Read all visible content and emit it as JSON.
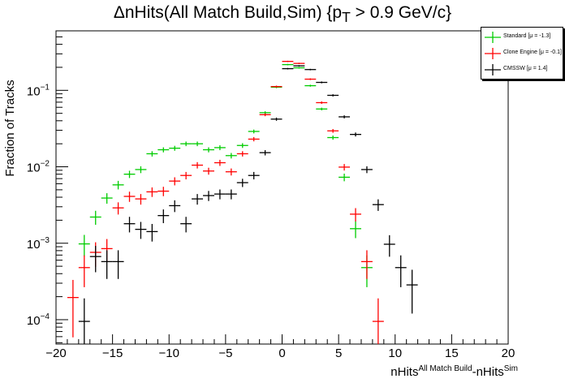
{
  "chart_data": {
    "type": "scatter",
    "title_main": "ΔnHits(All Match Build,Sim) {p",
    "title_sub": "T",
    "title_end": " > 0.9 GeV/c}",
    "xlabel_a": "nHits",
    "xlabel_sup1": "All Match Build",
    "xlabel_b": "-nHits",
    "xlabel_sup2": "Sim",
    "ylabel": "Fraction of Tracks",
    "xlim": [
      -20,
      20
    ],
    "ylim": [
      4.8e-05,
      0.6
    ],
    "yscale": "log",
    "x_ticks": [
      "−20",
      "−15",
      "−10",
      "−5",
      "0",
      "5",
      "10",
      "15",
      "20"
    ],
    "y_ticks": [
      {
        "base": "10",
        "exp": "−1"
      },
      {
        "base": "10",
        "exp": "−2"
      },
      {
        "base": "10",
        "exp": "−3"
      },
      {
        "base": "10",
        "exp": "−4"
      }
    ],
    "legend_position": "top-right-outside",
    "series": [
      {
        "name": "Standard",
        "mu": "[μ = -1.3]",
        "color": "#00cc00",
        "x": [
          -17.5,
          -16.5,
          -15.5,
          -14.5,
          -13.5,
          -12.5,
          -11.5,
          -10.5,
          -9.5,
          -8.5,
          -7.5,
          -6.5,
          -5.5,
          -4.5,
          -3.5,
          -2.5,
          -1.5,
          -0.5,
          0.5,
          1.5,
          2.5,
          3.5,
          4.5,
          5.5,
          6.5,
          7.5
        ],
        "y": [
          0.00098,
          0.0022,
          0.0039,
          0.0058,
          0.008,
          0.0092,
          0.0148,
          0.0167,
          0.0175,
          0.02,
          0.02,
          0.0167,
          0.0178,
          0.014,
          0.019,
          0.029,
          0.051,
          0.11,
          0.217,
          0.197,
          0.115,
          0.057,
          0.0241,
          0.0073,
          0.00155,
          0.00048
        ]
      },
      {
        "name": "Clone Engine",
        "mu": "[μ = -0.1]",
        "color": "#ff0000",
        "x": [
          -18.5,
          -17.5,
          -16.5,
          -15.5,
          -14.5,
          -13.5,
          -12.5,
          -11.5,
          -10.5,
          -9.5,
          -8.5,
          -7.5,
          -6.5,
          -5.5,
          -4.5,
          -3.5,
          -2.5,
          -1.5,
          -0.5,
          0.5,
          1.5,
          2.5,
          3.5,
          4.5,
          5.5,
          6.5,
          7.5,
          8.5
        ],
        "y": [
          0.000195,
          0.00048,
          0.00076,
          0.00085,
          0.0029,
          0.0041,
          0.0038,
          0.0047,
          0.0048,
          0.0065,
          0.0077,
          0.0105,
          0.0088,
          0.0113,
          0.0086,
          0.0148,
          0.023,
          0.048,
          0.112,
          0.239,
          0.225,
          0.14,
          0.069,
          0.0295,
          0.0099,
          0.0024,
          0.000575,
          9.5e-05
        ]
      },
      {
        "name": "CMSSW",
        "mu": "[μ =  1.4]",
        "color": "#000000",
        "x": [
          -17.5,
          -16.5,
          -15.5,
          -14.5,
          -13.5,
          -12.5,
          -11.5,
          -10.5,
          -9.5,
          -8.5,
          -7.5,
          -6.5,
          -5.5,
          -4.5,
          -3.5,
          -2.5,
          -1.5,
          -0.5,
          0.5,
          1.5,
          2.5,
          3.5,
          4.5,
          5.5,
          6.5,
          7.5,
          8.5,
          9.5,
          10.5,
          11.5
        ],
        "y": [
          9.5e-05,
          0.00067,
          0.000575,
          0.000575,
          0.0018,
          0.00152,
          0.00142,
          0.0023,
          0.0031,
          0.0018,
          0.0038,
          0.0042,
          0.0044,
          0.0044,
          0.0062,
          0.0077,
          0.0153,
          0.042,
          0.192,
          0.209,
          0.187,
          0.127,
          0.086,
          0.045,
          0.0265,
          0.0092,
          0.0032,
          0.00097,
          0.00048,
          0.000285
        ]
      }
    ]
  }
}
